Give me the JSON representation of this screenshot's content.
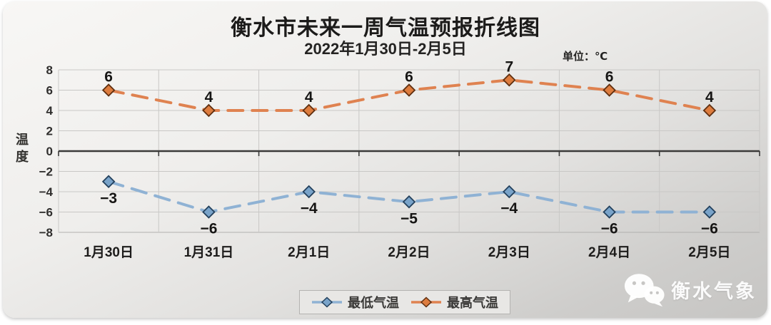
{
  "chart_data": {
    "type": "line",
    "title": "衡水市未来一周气温预报折线图",
    "subtitle": "2022年1月30日-2月5日",
    "unit": "单位：℃",
    "ylabel": "温度",
    "categories": [
      "1月30日",
      "1月31日",
      "2月1日",
      "2月2日",
      "2月3日",
      "2月4日",
      "2月5日"
    ],
    "series": [
      {
        "key": "min-temp",
        "name": "最低气温",
        "values": [
          -3,
          -6,
          -4,
          -5,
          -4,
          -6,
          -6
        ],
        "color": "#8fb2d4",
        "marker_fill": "#79a3c9",
        "marker_stroke": "#23405c",
        "label_position": "below"
      },
      {
        "key": "max-temp",
        "name": "最高气温",
        "values": [
          6,
          4,
          4,
          6,
          7,
          6,
          4
        ],
        "color": "#df8250",
        "marker_fill": "#dd7c3e",
        "marker_stroke": "#5f2f10",
        "label_position": "above"
      }
    ],
    "ylim": [
      -8,
      8
    ],
    "ytick_step": 2,
    "grid": true,
    "grid_color": "#c9c8c6",
    "axis_color": "#3b3a39",
    "legend_position": "bottom"
  },
  "watermark": {
    "text": "衡水气象"
  }
}
